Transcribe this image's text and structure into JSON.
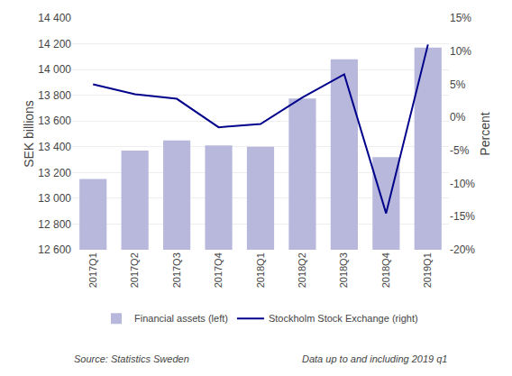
{
  "chart_data": {
    "type": "bar",
    "categories": [
      "2017Q1",
      "2017Q2",
      "2017Q3",
      "2017Q4",
      "2018Q1",
      "2018Q2",
      "2018Q3",
      "2018Q4",
      "2019Q1"
    ],
    "series": [
      {
        "name": "Financial assets (left)",
        "type": "bar",
        "color": "#b8b8dc",
        "values": [
          13150,
          13370,
          13450,
          13410,
          13400,
          13775,
          14080,
          13320,
          14170
        ]
      },
      {
        "name": "Stockholm Stock Exchange (right)",
        "type": "line",
        "color": "#00008B",
        "axis": "y2",
        "values": [
          5.0,
          3.5,
          2.8,
          -1.5,
          -1.0,
          3.0,
          6.5,
          -14.5,
          11.0
        ]
      }
    ],
    "ylabel": "SEK billions",
    "y2label": "Percent",
    "ylim": [
      12600,
      14400
    ],
    "yticks": [
      {
        "value": 12600,
        "label": "12 600"
      },
      {
        "value": 12800,
        "label": "12 800"
      },
      {
        "value": 13000,
        "label": "13 000"
      },
      {
        "value": 13200,
        "label": "13 200"
      },
      {
        "value": 13400,
        "label": "13 400"
      },
      {
        "value": 13600,
        "label": "13 600"
      },
      {
        "value": 13800,
        "label": "13 800"
      },
      {
        "value": 14000,
        "label": "14 000"
      },
      {
        "value": 14200,
        "label": "14 200"
      },
      {
        "value": 14400,
        "label": "14 400"
      }
    ],
    "y2lim": [
      -20,
      15
    ],
    "y2ticks": [
      {
        "value": -20,
        "label": "-20%"
      },
      {
        "value": -15,
        "label": "-15%"
      },
      {
        "value": -10,
        "label": "-10%"
      },
      {
        "value": -5,
        "label": "-5%"
      },
      {
        "value": 0,
        "label": "0%"
      },
      {
        "value": 5,
        "label": "5%"
      },
      {
        "value": 10,
        "label": "10%"
      },
      {
        "value": 15,
        "label": "15%"
      }
    ],
    "grid": true,
    "legend": "bottom",
    "annotations": [
      "Source: Statistics Sweden",
      "Data up to and including 2019 q1"
    ]
  }
}
